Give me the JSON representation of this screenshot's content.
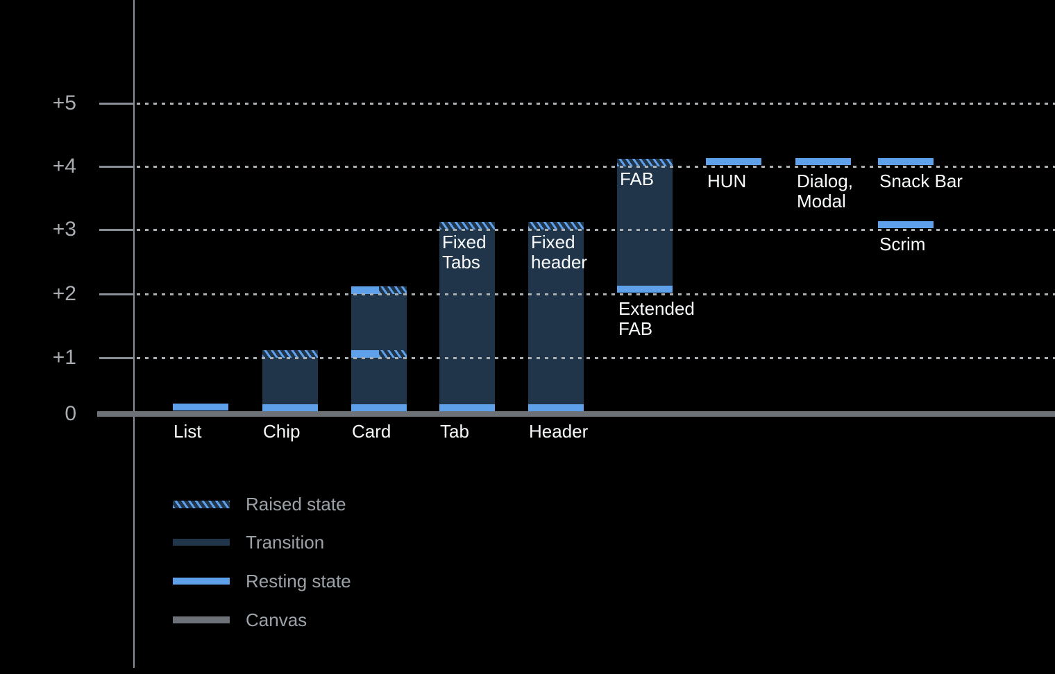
{
  "colors": {
    "background": "#000000",
    "resting_blue": "#5EA0E9",
    "transition_navy": "#20344A",
    "canvas_gray": "#6C7278",
    "axis_gray": "#8A9097",
    "grid_dash": "#ABB0B5",
    "bar_label_white": "#F8FAFB",
    "tick_label_gray": "#A9ADB1",
    "legend_text_gray": "#9CA2A8"
  },
  "chart_data": {
    "type": "bar",
    "subtype": "material-elevation-diagram",
    "y_axis": {
      "range": [
        0,
        5
      ],
      "gridlines": "dotted",
      "ticks": [
        {
          "label": "+5",
          "value": 5
        },
        {
          "label": "+4",
          "value": 4
        },
        {
          "label": "+3",
          "value": 3
        },
        {
          "label": "+2",
          "value": 2
        },
        {
          "label": "+1",
          "value": 1
        },
        {
          "label": "0",
          "value": 0
        }
      ]
    },
    "bars": [
      {
        "name": "List",
        "slot": 0,
        "axis_label": "List",
        "resting_levels": [
          0
        ]
      },
      {
        "name": "Chip",
        "slot": 1,
        "axis_label": "Chip",
        "resting_levels": [
          0
        ],
        "transition": {
          "from": 0,
          "to": 1
        },
        "bands": [
          {
            "level": 1,
            "style": "hatch"
          }
        ]
      },
      {
        "name": "Card",
        "slot": 2,
        "axis_label": "Card",
        "resting_levels": [
          0
        ],
        "transition": {
          "from": 0,
          "to": 2
        },
        "bands": [
          {
            "level": 2,
            "style": "split"
          },
          {
            "level": 1,
            "style": "split"
          }
        ]
      },
      {
        "name": "Tab",
        "slot": 3,
        "axis_label": "Tab",
        "resting_levels": [
          0
        ],
        "transition": {
          "from": 0,
          "to": 3
        },
        "bands": [
          {
            "level": 3,
            "style": "hatch"
          }
        ],
        "inside_label": [
          "Fixed",
          "Tabs"
        ]
      },
      {
        "name": "Header",
        "slot": 4,
        "axis_label": "Header",
        "resting_levels": [
          0
        ],
        "transition": {
          "from": 0,
          "to": 3
        },
        "bands": [
          {
            "level": 3,
            "style": "hatch"
          }
        ],
        "inside_label": [
          "Fixed",
          "header"
        ]
      },
      {
        "name": "FAB",
        "slot": 5,
        "resting_levels": [
          2
        ],
        "transition": {
          "from": 2,
          "to": 4
        },
        "bands": [
          {
            "level": 4,
            "style": "hatch"
          }
        ],
        "inside_label": [
          "FAB"
        ],
        "below_label": [
          "Extended",
          "FAB"
        ]
      },
      {
        "name": "HUN",
        "slot": 6,
        "resting_levels": [
          4
        ],
        "below_label": [
          "HUN"
        ]
      },
      {
        "name": "Dialog, Modal",
        "slot": 7,
        "resting_levels": [
          4
        ],
        "below_label": [
          "Dialog,",
          "Modal"
        ]
      },
      {
        "name": "Snack Bar",
        "slot": 8,
        "resting_levels": [
          4
        ],
        "below_label": [
          "Snack Bar"
        ]
      },
      {
        "name": "Scrim",
        "slot": 8,
        "resting_levels": [
          3
        ],
        "below_label": [
          "Scrim"
        ]
      }
    ],
    "legend": [
      {
        "label": "Raised state",
        "style": "raised"
      },
      {
        "label": "Transition",
        "style": "transition"
      },
      {
        "label": "Resting state",
        "style": "resting"
      },
      {
        "label": "Canvas",
        "style": "canvas"
      }
    ]
  }
}
